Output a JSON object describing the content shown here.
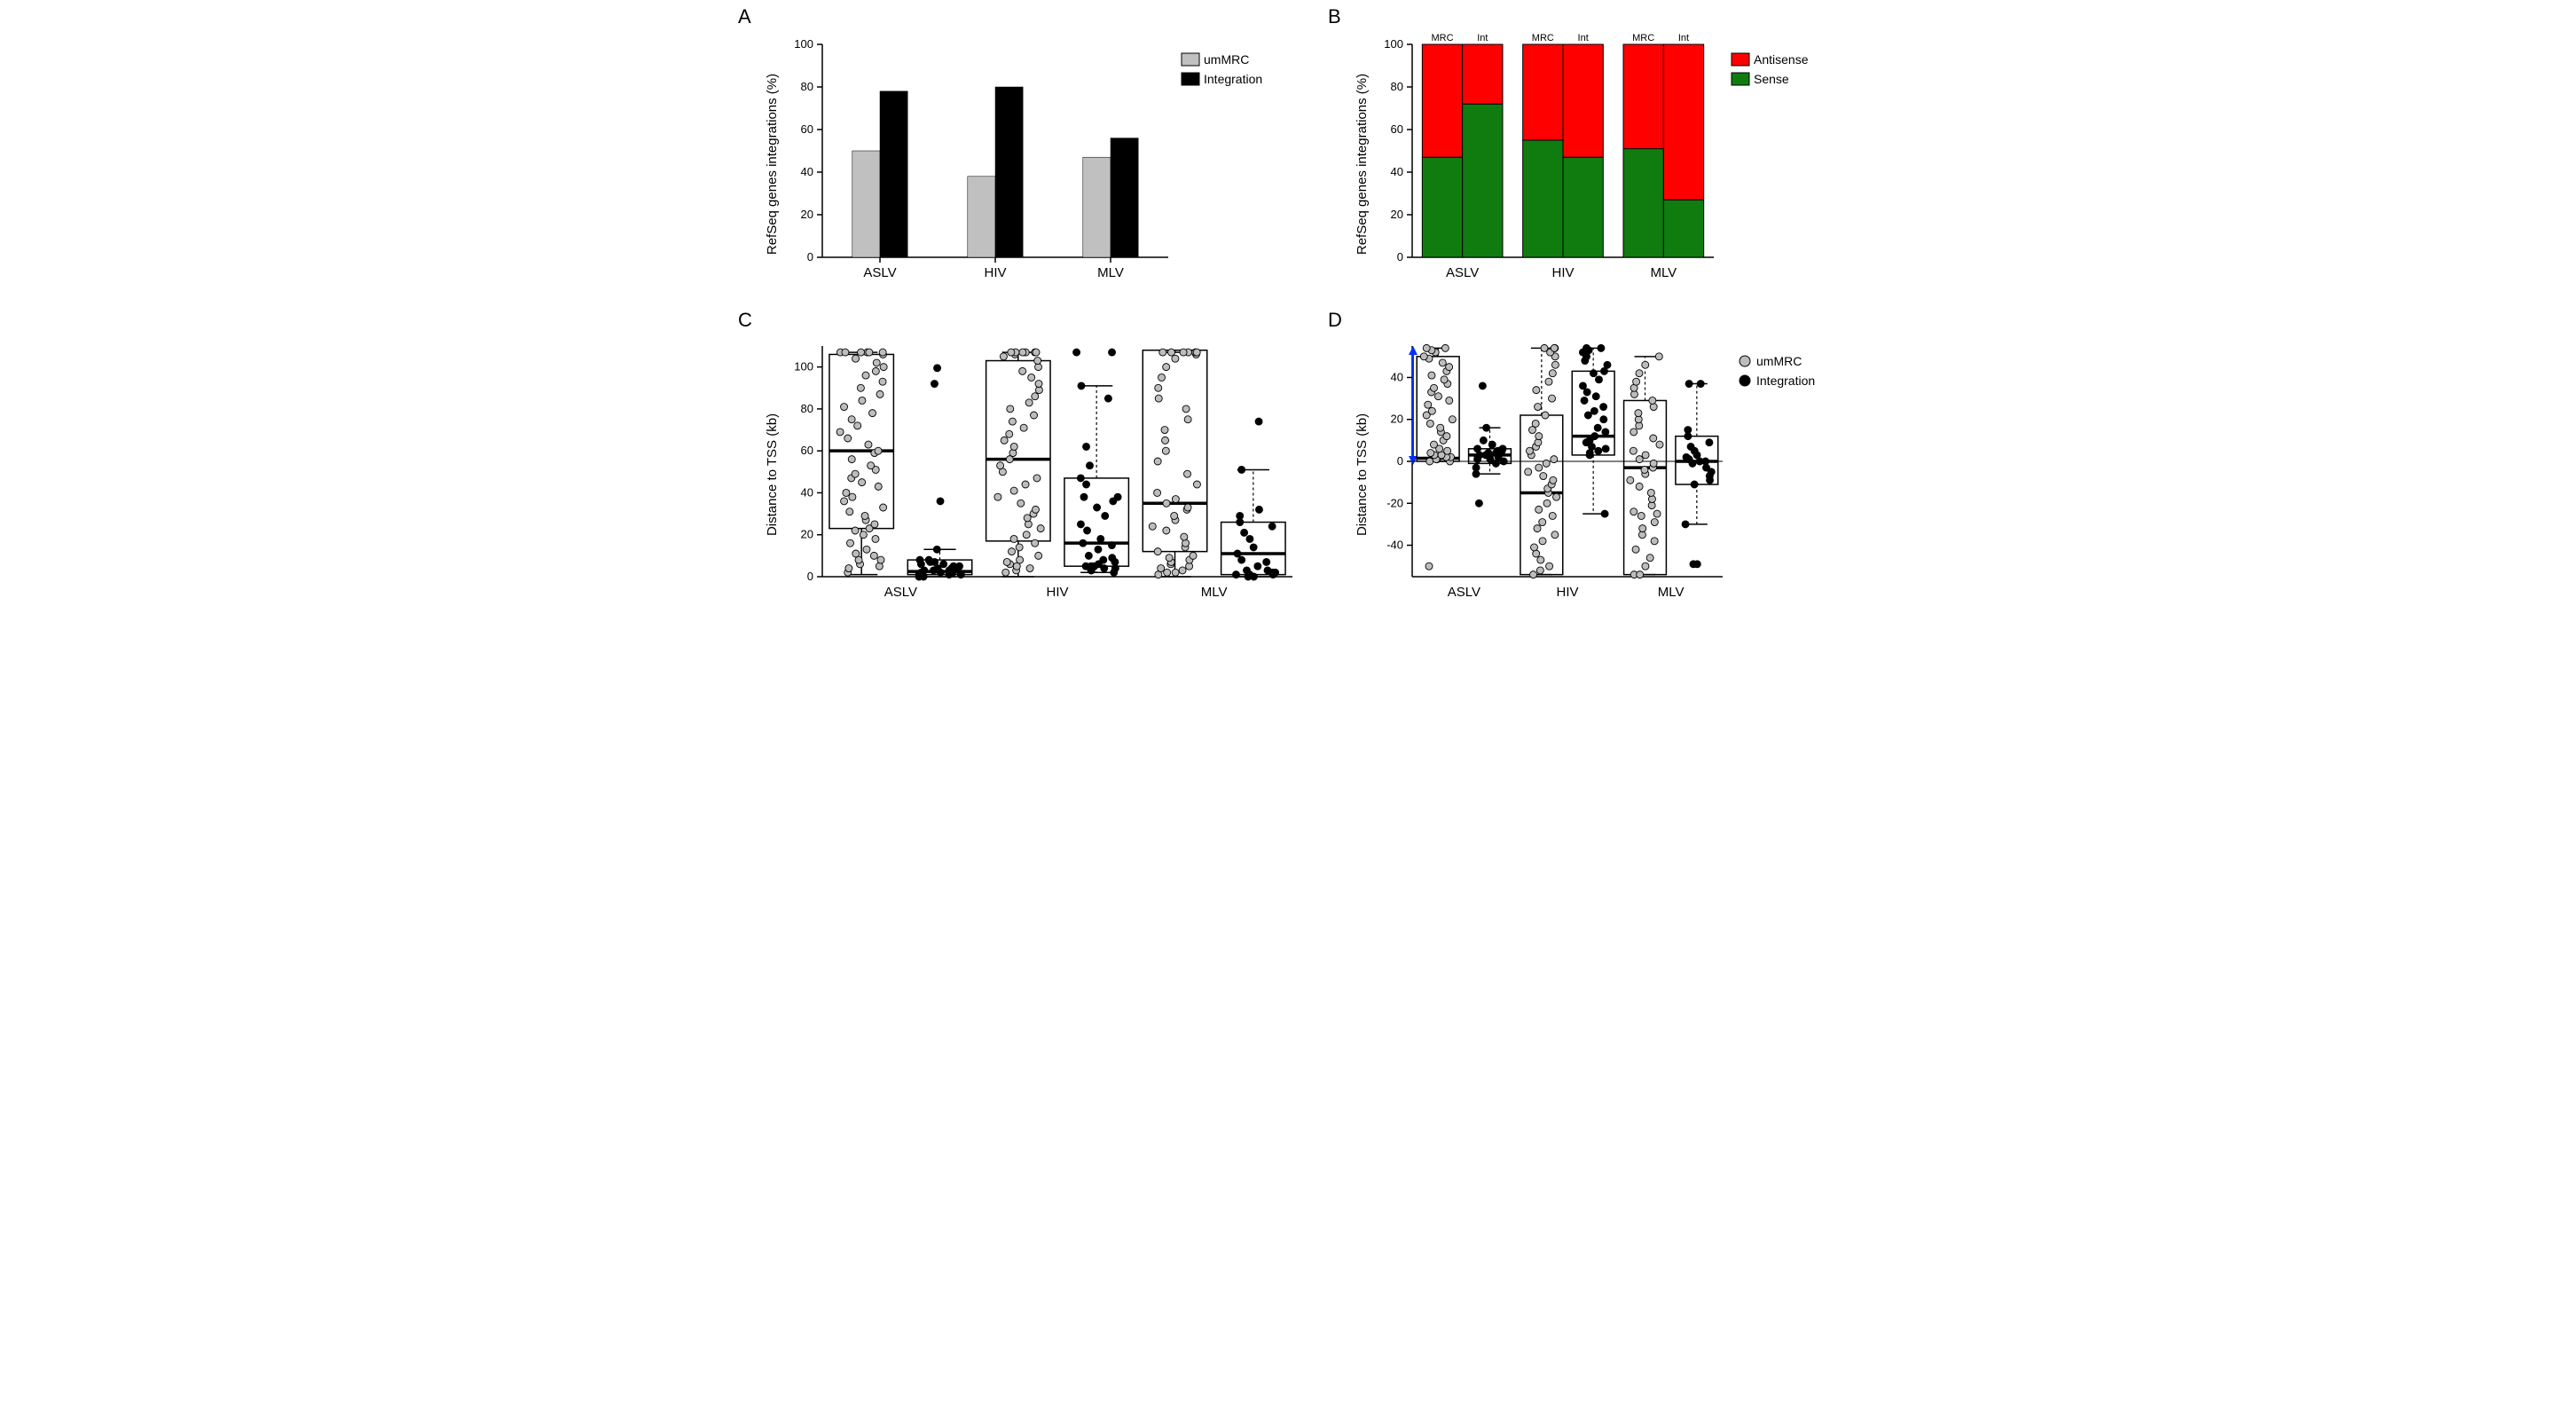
{
  "labels": {
    "A": "A",
    "B": "B",
    "C": "C",
    "D": "D"
  },
  "A": {
    "type": "bar",
    "ylabel": "RefSeq genes integrations (%)",
    "ylim": [
      0,
      100
    ],
    "ytick_step": 20,
    "categories": [
      "ASLV",
      "HIV",
      "MLV"
    ],
    "series": [
      {
        "name": "umMRC",
        "color": "#c0c0c0",
        "values": [
          50,
          38,
          47
        ]
      },
      {
        "name": "Integration",
        "color": "#000000",
        "values": [
          78,
          80,
          56
        ]
      }
    ],
    "bar_width": 0.48,
    "legend": [
      {
        "swatch": "#c0c0c0",
        "label": "umMRC",
        "stroke": "#000"
      },
      {
        "swatch": "#000000",
        "label": "Integration",
        "stroke": "#000"
      }
    ]
  },
  "B": {
    "type": "stacked-bar",
    "ylabel": "RefSeq genes integrations (%)",
    "ylim": [
      0,
      100
    ],
    "ytick_step": 20,
    "categories": [
      "ASLV",
      "HIV",
      "MLV"
    ],
    "top_sub_labels": [
      "MRC",
      "Int"
    ],
    "series_order": [
      "Sense",
      "Antisense"
    ],
    "colors": {
      "Sense": "#107c10",
      "Antisense": "#ff0000"
    },
    "data": {
      "ASLV": {
        "MRC": {
          "Sense": 47,
          "Antisense": 53
        },
        "Int": {
          "Sense": 72,
          "Antisense": 28
        }
      },
      "HIV": {
        "MRC": {
          "Sense": 55,
          "Antisense": 45
        },
        "Int": {
          "Sense": 47,
          "Antisense": 53
        }
      },
      "MLV": {
        "MRC": {
          "Sense": 51,
          "Antisense": 49
        },
        "Int": {
          "Sense": 27,
          "Antisense": 73
        }
      }
    },
    "bar_stroke": "#000000",
    "legend": [
      {
        "swatch": "#ff0000",
        "label": "Antisense",
        "stroke": "#000"
      },
      {
        "swatch": "#107c10",
        "label": "Sense",
        "stroke": "#000"
      }
    ]
  },
  "C": {
    "type": "box-scatter",
    "ylabel": "Distance to TSS (kb)",
    "ylim": [
      0,
      110
    ],
    "yticks": [
      0,
      20,
      40,
      60,
      80,
      100
    ],
    "categories": [
      "ASLV",
      "HIV",
      "MLV"
    ],
    "subcols": [
      "umMRC",
      "Integration"
    ],
    "colors": {
      "umMRC": "#bdbdbd",
      "Integration": "#000000"
    },
    "point_stroke": "#000000",
    "point_r": 4,
    "data": {
      "ASLV": {
        "umMRC": {
          "box": {
            "q1": 23,
            "med": 60,
            "q3": 106,
            "lo": 1,
            "hi": 107,
            "dashed": false
          },
          "points": [
            2,
            4,
            5,
            6,
            8,
            8,
            10,
            11,
            13,
            16,
            18,
            20,
            22,
            23,
            25,
            27,
            29,
            31,
            33,
            36,
            38,
            40,
            43,
            45,
            47,
            49,
            51,
            53,
            56,
            59,
            60,
            63,
            66,
            69,
            72,
            75,
            78,
            81,
            84,
            87,
            90,
            93,
            96,
            98,
            100,
            102,
            104,
            106,
            107,
            107,
            107,
            107,
            107,
            107
          ]
        },
        "Integration": {
          "box": {
            "q1": 1,
            "med": 2.5,
            "q3": 8,
            "lo": 0,
            "hi": 13,
            "dashed": true
          },
          "points": [
            0,
            0,
            1,
            1,
            1,
            2,
            2,
            2,
            2,
            3,
            3,
            3,
            3,
            4,
            4,
            4,
            5,
            5,
            6,
            6,
            7,
            7,
            8,
            8,
            13,
            36,
            92,
            99.5
          ]
        }
      },
      "HIV": {
        "umMRC": {
          "box": {
            "q1": 17,
            "med": 56,
            "q3": 103,
            "lo": 0,
            "hi": 107,
            "dashed": false
          },
          "points": [
            2,
            3,
            4,
            5,
            6,
            7,
            8,
            10,
            12,
            14,
            16,
            18,
            20,
            23,
            25,
            28,
            30,
            32,
            35,
            38,
            41,
            44,
            47,
            50,
            53,
            56,
            59,
            62,
            65,
            68,
            71,
            74,
            77,
            80,
            83,
            86,
            89,
            92,
            95,
            98,
            100,
            103,
            105,
            106,
            107,
            107,
            107,
            107,
            107,
            107
          ]
        },
        "Integration": {
          "box": {
            "q1": 5,
            "med": 16,
            "q3": 47,
            "lo": 2,
            "hi": 91,
            "dashed": true
          },
          "points": [
            2,
            3,
            3,
            4,
            4,
            5,
            5,
            5,
            6,
            7,
            8,
            9,
            10,
            13,
            15,
            16,
            18,
            22,
            25,
            29,
            33,
            36,
            38,
            38,
            44,
            47,
            53,
            62,
            85,
            91,
            107,
            107
          ]
        }
      },
      "MLV": {
        "umMRC": {
          "box": {
            "q1": 12,
            "med": 35,
            "q3": 108,
            "lo": 0,
            "hi": 107,
            "dashed": false
          },
          "points": [
            1,
            2,
            2,
            3,
            4,
            5,
            6,
            7,
            8,
            9,
            10,
            12,
            14,
            16,
            19,
            22,
            24,
            27,
            29,
            32,
            33,
            35,
            37,
            40,
            44,
            49,
            55,
            60,
            65,
            70,
            75,
            80,
            85,
            90,
            95,
            100,
            104,
            106,
            107,
            107,
            107,
            107,
            107,
            107
          ]
        },
        "Integration": {
          "box": {
            "q1": 1,
            "med": 11,
            "q3": 26,
            "lo": 0,
            "hi": 51,
            "dashed": true
          },
          "points": [
            0,
            0,
            1,
            1,
            1,
            2,
            2,
            3,
            3,
            5,
            7,
            8,
            11,
            14,
            18,
            21,
            24,
            26,
            29,
            32,
            51,
            74
          ]
        }
      }
    }
  },
  "D": {
    "type": "box-scatter",
    "ylabel": "Distance to TSS (kb)",
    "ylim": [
      -55,
      55
    ],
    "yticks": [
      -40,
      -20,
      0,
      20,
      40
    ],
    "categories": [
      "ASLV",
      "HIV",
      "MLV"
    ],
    "subcols": [
      "umMRC",
      "Integration"
    ],
    "colors": {
      "umMRC": "#bdbdbd",
      "Integration": "#000000"
    },
    "point_stroke": "#000000",
    "point_r": 4,
    "data": {
      "ASLV": {
        "umMRC": {
          "box": {
            "q1": 0,
            "med": 1.5,
            "q3": 50,
            "lo": 0,
            "hi": 54,
            "dashed": true
          },
          "points": [
            -50,
            0,
            0,
            1,
            1,
            2,
            2,
            3,
            3,
            4,
            5,
            6,
            8,
            10,
            12,
            14,
            16,
            18,
            20,
            22,
            24,
            27,
            29,
            31,
            33,
            35,
            37,
            39,
            41,
            43,
            45,
            47,
            49,
            50,
            52,
            53,
            54,
            54
          ]
        },
        "Integration": {
          "box": {
            "q1": -1,
            "med": 3,
            "q3": 6,
            "lo": -6,
            "hi": 16,
            "dashed": true
          },
          "points": [
            -20,
            -6,
            -3,
            -1,
            0,
            1,
            1,
            2,
            2,
            3,
            3,
            3,
            4,
            4,
            5,
            5,
            5,
            6,
            6,
            8,
            10,
            16,
            36
          ]
        }
      },
      "HIV": {
        "umMRC": {
          "box": {
            "q1": -54,
            "med": -15,
            "q3": 22,
            "lo": -54,
            "hi": 54,
            "dashed": true
          },
          "points": [
            -54,
            -52,
            -50,
            -47,
            -44,
            -41,
            -38,
            -35,
            -32,
            -29,
            -26,
            -23,
            -20,
            -17,
            -15,
            -13,
            -11,
            -9,
            -7,
            -5,
            -3,
            -1,
            1,
            3,
            5,
            7,
            9,
            12,
            15,
            18,
            22,
            26,
            30,
            34,
            38,
            42,
            46,
            50,
            52,
            54,
            54,
            54
          ]
        },
        "Integration": {
          "box": {
            "q1": 3,
            "med": 12,
            "q3": 43,
            "lo": -25,
            "hi": 54,
            "dashed": true
          },
          "points": [
            -25,
            3,
            4,
            5,
            6,
            7,
            9,
            10,
            12,
            14,
            16,
            20,
            22,
            24,
            26,
            29,
            31,
            33,
            36,
            39,
            42,
            43,
            46,
            48,
            50,
            52,
            53,
            54,
            54
          ]
        }
      },
      "MLV": {
        "umMRC": {
          "box": {
            "q1": -54,
            "med": -3,
            "q3": 29,
            "lo": -54,
            "hi": 50,
            "dashed": true
          },
          "points": [
            -54,
            -54,
            -50,
            -46,
            -42,
            -38,
            -35,
            -32,
            -29,
            -26,
            -25,
            -24,
            -21,
            -18,
            -15,
            -12,
            -9,
            -6,
            -4,
            -3,
            -1,
            1,
            3,
            5,
            8,
            11,
            14,
            17,
            20,
            23,
            26,
            29,
            32,
            35,
            38,
            42,
            46,
            50
          ]
        },
        "Integration": {
          "box": {
            "q1": -11,
            "med": 0,
            "q3": 12,
            "lo": -30,
            "hi": 37,
            "dashed": true
          },
          "points": [
            -49,
            -49,
            -30,
            -11,
            -9,
            -7,
            -5,
            -3,
            -1,
            0,
            0,
            1,
            2,
            3,
            5,
            7,
            9,
            12,
            15,
            37,
            37
          ]
        }
      }
    },
    "legend": [
      {
        "marker": "#bdbdbd",
        "label": "umMRC"
      },
      {
        "marker": "#000000",
        "label": "Integration"
      }
    ]
  }
}
